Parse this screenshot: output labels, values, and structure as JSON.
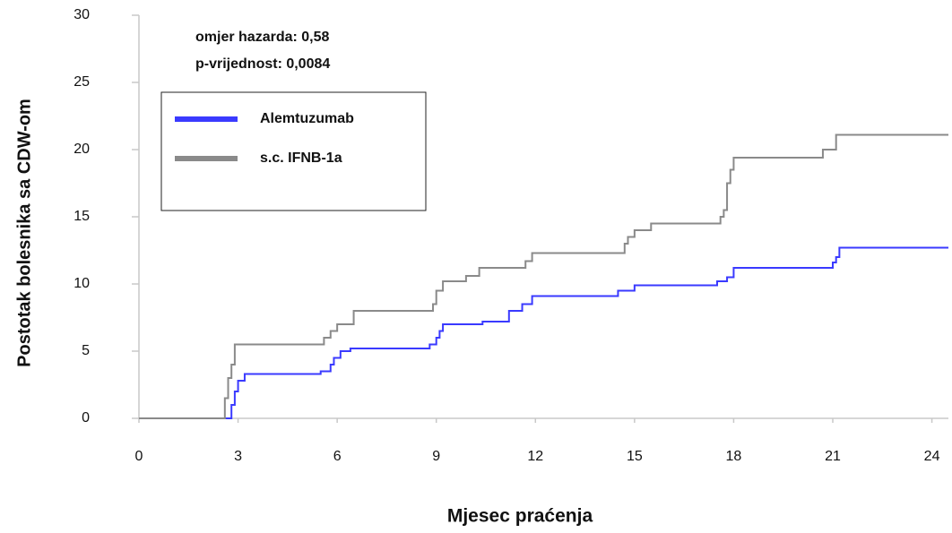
{
  "chart_data": {
    "type": "step",
    "annotations": [
      "omjer hazarda: 0,58",
      "p-vrijednost: 0,0084"
    ],
    "xlabel": "Mjesec praćenja",
    "ylabel": "Postotak bolesnika sa CDW-om",
    "xlim": [
      0,
      24.5
    ],
    "ylim": [
      0,
      30
    ],
    "xticks": [
      0,
      3,
      6,
      9,
      12,
      15,
      18,
      21,
      24
    ],
    "yticks": [
      0,
      5,
      10,
      15,
      20,
      25,
      30
    ],
    "series": [
      {
        "name": "Alemtuzumab",
        "color": "#3a3aff",
        "x": [
          0,
          2.6,
          2.8,
          2.9,
          3.0,
          3.2,
          5.5,
          5.8,
          5.9,
          6.1,
          6.4,
          8.8,
          9.0,
          9.1,
          9.2,
          10.4,
          11.2,
          11.6,
          11.9,
          14.5,
          15.0,
          17.5,
          17.8,
          18.0,
          21.0,
          21.1,
          21.2,
          24.5
        ],
        "values": [
          0,
          0,
          1,
          2,
          2.8,
          3.3,
          3.5,
          4,
          4.5,
          5,
          5.2,
          5.5,
          6,
          6.5,
          7,
          7.2,
          8,
          8.5,
          9.1,
          9.5,
          9.9,
          10.2,
          10.5,
          11.2,
          11.6,
          12,
          12.7,
          12.7
        ]
      },
      {
        "name": "s.c. IFNB-1a",
        "color": "#8a8a8a",
        "x": [
          0,
          2.5,
          2.6,
          2.7,
          2.8,
          2.9,
          5.6,
          5.8,
          6.0,
          6.5,
          8.9,
          9.0,
          9.2,
          9.9,
          10.3,
          11.7,
          11.9,
          14.7,
          14.8,
          15.0,
          15.5,
          17.6,
          17.7,
          17.8,
          17.9,
          18.0,
          20.7,
          21.1,
          24.5
        ],
        "values": [
          0,
          0,
          1.5,
          3,
          4,
          5.5,
          6,
          6.5,
          7,
          8,
          8.5,
          9.5,
          10.2,
          10.6,
          11.2,
          11.7,
          12.3,
          13,
          13.5,
          14,
          14.5,
          15,
          15.5,
          17.5,
          18.5,
          19.4,
          20,
          21.1,
          21.1
        ]
      }
    ]
  }
}
